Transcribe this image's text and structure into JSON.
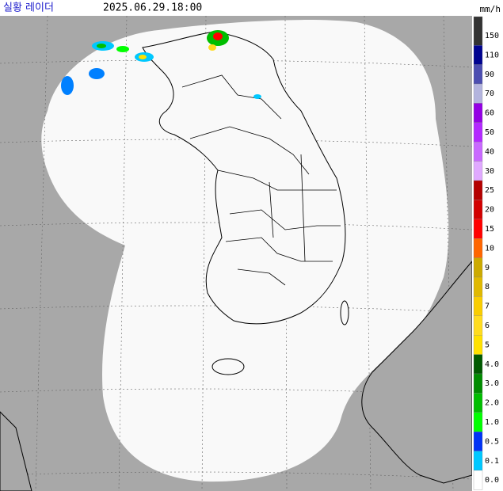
{
  "header": {
    "title": "실황 레이더",
    "time": "2025.06.29.18:00",
    "unit": "mm/h"
  },
  "legend": [
    {
      "label": "150",
      "color": "#333333"
    },
    {
      "label": "110",
      "color": "#000390"
    },
    {
      "label": "90",
      "color": "#4c4eb1"
    },
    {
      "label": "70",
      "color": "#b3b4de"
    },
    {
      "label": "60",
      "color": "#9300e4"
    },
    {
      "label": "50",
      "color": "#b329ff"
    },
    {
      "label": "40",
      "color": "#c969ff"
    },
    {
      "label": "30",
      "color": "#e0a9ff"
    },
    {
      "label": "25",
      "color": "#b40000"
    },
    {
      "label": "20",
      "color": "#d20000"
    },
    {
      "label": "15",
      "color": "#ff0000"
    },
    {
      "label": "10",
      "color": "#ff6600"
    },
    {
      "label": "9",
      "color": "#ccaa00"
    },
    {
      "label": "8",
      "color": "#e0b900"
    },
    {
      "label": "7",
      "color": "#f9cd00"
    },
    {
      "label": "6",
      "color": "#ffdc1f"
    },
    {
      "label": "5",
      "color": "#ffe100"
    },
    {
      "label": "4.0",
      "color": "#005a00"
    },
    {
      "label": "3.0",
      "color": "#008c00"
    },
    {
      "label": "2.0",
      "color": "#00be00"
    },
    {
      "label": "1.0",
      "color": "#00ff00"
    },
    {
      "label": "0.5",
      "color": "#0033f5"
    },
    {
      "label": "0.1",
      "color": "#00c8ff"
    },
    {
      "label": "0.0",
      "color": "#ffffff"
    }
  ]
}
